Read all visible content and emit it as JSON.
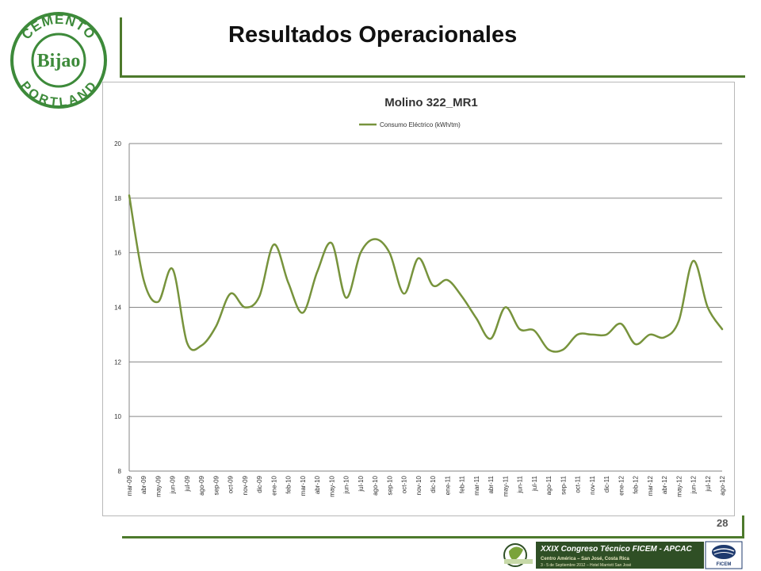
{
  "slide": {
    "title": "Resultados Operacionales",
    "page_number": "28"
  },
  "logo": {
    "top_text": "CEMENTO",
    "center_text": "Bijao",
    "bottom_text": "PORTLAND",
    "color": "#3d8a3a"
  },
  "footer": {
    "line1": "XXIX Congreso Técnico FICEM - APCAC",
    "line2": "Centro América – San José, Costa Rica",
    "line3": "3 - 5 de Septiembre 2012 – Hotel Marriott San José",
    "org": "FICEM",
    "banner_color": "#2f4f25"
  },
  "chart_data": {
    "type": "line",
    "title": "Molino 322_MR1",
    "xlabel": "",
    "ylabel": "",
    "ylim": [
      8,
      20
    ],
    "yticks": [
      8,
      10,
      12,
      14,
      16,
      18,
      20
    ],
    "grid": true,
    "legend": "top",
    "categories": [
      "mar-09",
      "abr-09",
      "may-09",
      "jun-09",
      "jul-09",
      "ago-09",
      "sep-09",
      "oct-09",
      "nov-09",
      "dic-09",
      "ene-10",
      "feb-10",
      "mar-10",
      "abr-10",
      "may-10",
      "jun-10",
      "jul-10",
      "ago-10",
      "sep-10",
      "oct-10",
      "nov-10",
      "dic-10",
      "ene-11",
      "feb-11",
      "mar-11",
      "abr-11",
      "may-11",
      "jun-11",
      "jul-11",
      "ago-11",
      "sep-11",
      "oct-11",
      "nov-11",
      "dic-11",
      "ene-12",
      "feb-12",
      "mar-12",
      "abr-12",
      "may-12",
      "jun-12",
      "jul-12",
      "ago-12"
    ],
    "series": [
      {
        "name": "Consumo Eléctrico (kWh/tm)",
        "color": "#77933c",
        "values": [
          18.1,
          15.0,
          14.2,
          15.4,
          12.7,
          12.6,
          13.3,
          14.5,
          14.0,
          14.4,
          16.3,
          14.9,
          13.8,
          15.3,
          16.35,
          14.35,
          16.0,
          16.5,
          16.0,
          14.5,
          15.8,
          14.8,
          15.0,
          14.4,
          13.6,
          12.85,
          14.0,
          13.2,
          13.15,
          12.45,
          12.45,
          13.0,
          13.0,
          13.0,
          13.4,
          12.65,
          13.0,
          12.9,
          13.5,
          15.7,
          14.0,
          13.2
        ]
      }
    ]
  }
}
